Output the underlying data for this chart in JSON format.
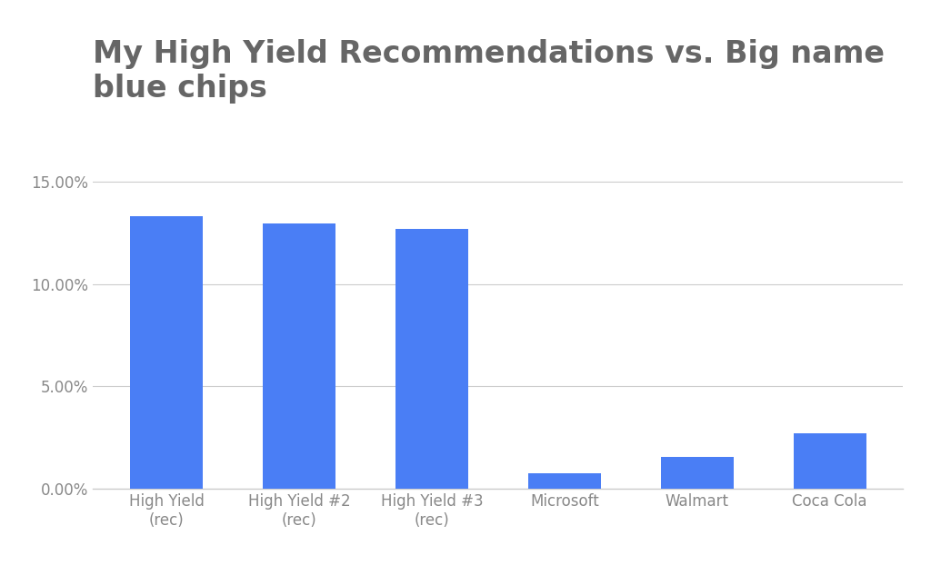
{
  "title_line1": "My High Yield Recommendations vs. Big name",
  "title_line2": "blue chips",
  "categories": [
    "High Yield\n(rec)",
    "High Yield #2\n(rec)",
    "High Yield #3\n(rec)",
    "Microsoft",
    "Walmart",
    "Coca Cola"
  ],
  "values": [
    0.133,
    0.1295,
    0.127,
    0.0075,
    0.0155,
    0.027
  ],
  "bar_color": "#4a7ef5",
  "background_color": "#ffffff",
  "title_color": "#666666",
  "tick_color": "#888888",
  "grid_color": "#cccccc",
  "ylim": [
    0,
    0.16
  ],
  "yticks": [
    0.0,
    0.05,
    0.1,
    0.15
  ],
  "ytick_labels": [
    "0.00%",
    "5.00%",
    "10.00%",
    "15.00%"
  ],
  "title_fontsize": 24,
  "tick_fontsize": 12
}
